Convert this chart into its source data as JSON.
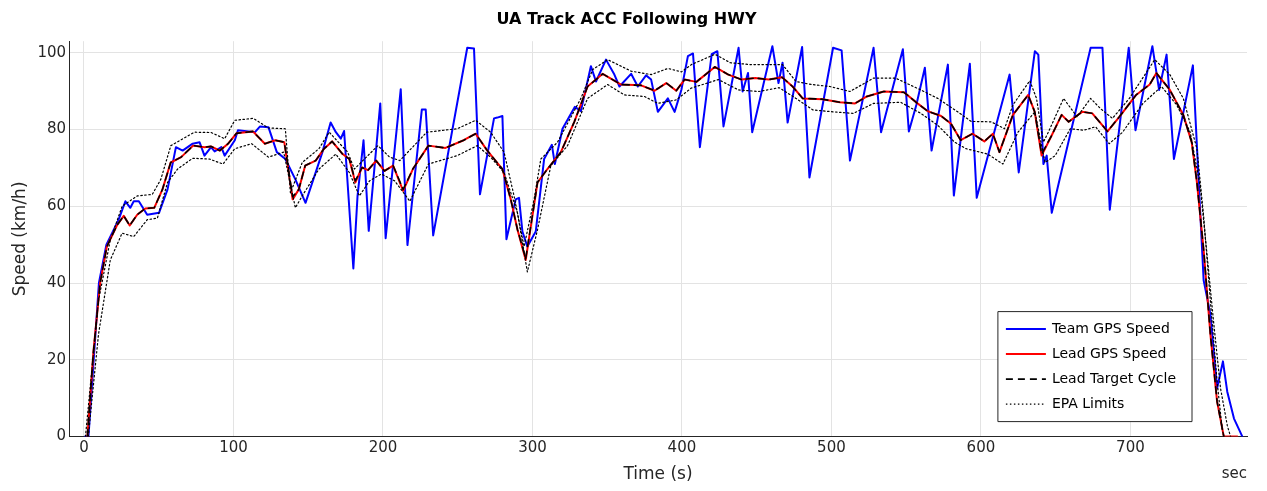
{
  "chart_data": {
    "type": "line",
    "title": "UA Track ACC Following HWY",
    "xlabel": "Time (s)",
    "ylabel": "Speed (km/h)",
    "annotations": [
      "sec"
    ],
    "xlim": [
      -10,
      778
    ],
    "xticks": [
      0,
      100,
      200,
      300,
      400,
      500,
      600,
      700
    ],
    "ylim": [
      0,
      103
    ],
    "yticks": [
      0,
      20,
      40,
      60,
      80,
      100
    ],
    "grid": true,
    "legend": "bottom right",
    "marker": "none",
    "series": [
      {
        "name": "Team GPS Speed",
        "color": "#0000ff",
        "line_style": "solid",
        "x": [
          0.7,
          3,
          10,
          15,
          23.2,
          27.7,
          31,
          33.3,
          36.7,
          42.3,
          50.2,
          55.9,
          61.5,
          66,
          72.7,
          77.3,
          80.6,
          85,
          87.4,
          91.9,
          94.1,
          100.9,
          103,
          114.4,
          117.8,
          123.4,
          129,
          134.7,
          141.4,
          148.2,
          159.5,
          165,
          168.5,
          171.8,
          174,
          180.2,
          183,
          187,
          190.5,
          198.2,
          201.8,
          211.9,
          216.4,
          226,
          228.6,
          233.6,
          256.4,
          260.9,
          264.9,
          274.3,
          276.5,
          279.9,
          282.6,
          288.8,
          291,
          293.3,
          296.6,
          302.2,
          307.8,
          313,
          315,
          320.1,
          328.4,
          332.4,
          339.1,
          342.5,
          349.2,
          354.8,
          358.2,
          366,
          370.5,
          376,
          379.4,
          383.9,
          390.6,
          395.1,
          399.6,
          404,
          407.4,
          412,
          419.9,
          423.7,
          427.8,
          437.9,
          440.6,
          444.2,
          447,
          460.5,
          464.6,
          467.3,
          470.7,
          480.4,
          485.3,
          501.1,
          506.8,
          512.4,
          528.2,
          533.2,
          547.8,
          551.8,
          556.8,
          562.5,
          567,
          571.1,
          577.9,
          581.9,
          592.6,
          597.2,
          619.2,
          625.3,
          636.1,
          638.4,
          641.8,
          644,
          647.4,
          673.4,
          681.3,
          686.2,
          698.9,
          703.4,
          714.7,
          719.2,
          724.2,
          729.1,
          741.8,
          749,
          753.5,
          758,
          761.9,
          764.8,
          769.3,
          774.9
        ],
        "values": [
          0,
          0,
          40,
          50,
          56.5,
          61.3,
          59.6,
          61.3,
          61.3,
          57.8,
          58.3,
          64.4,
          75.4,
          74.5,
          76.3,
          76.7,
          73.2,
          75.4,
          74.3,
          75.4,
          73.2,
          77.2,
          79.8,
          79.3,
          80.8,
          80.6,
          74.1,
          72.3,
          67,
          60.9,
          74.1,
          81.8,
          79.3,
          77.6,
          79.6,
          43.8,
          62.7,
          77.2,
          53.6,
          86.8,
          51.7,
          90.5,
          49.9,
          85.2,
          85.2,
          52.4,
          101.3,
          101.1,
          63.1,
          82.9,
          83.1,
          83.5,
          51.4,
          61.8,
          62.2,
          53.4,
          49.5,
          53.4,
          72.3,
          76,
          71,
          80.2,
          85.9,
          84.8,
          96.5,
          92.5,
          98.2,
          94.3,
          91.2,
          94.5,
          91.2,
          94.1,
          93,
          84.6,
          88.1,
          84.6,
          90.3,
          99.1,
          99.8,
          75.4,
          99.6,
          100.4,
          80.8,
          101.3,
          89.9,
          94.7,
          79.3,
          101.7,
          92.1,
          97.4,
          81.8,
          101.5,
          67.5,
          101.3,
          100.6,
          71.9,
          101.3,
          79.3,
          100.9,
          79.5,
          86.4,
          96.1,
          74.5,
          82.9,
          96.9,
          62.8,
          97.1,
          62.2,
          94.3,
          68.8,
          100.4,
          99.5,
          71,
          73.2,
          58.3,
          101.3,
          101.3,
          59.1,
          101.3,
          79.8,
          101.7,
          90.3,
          99.5,
          72.3,
          96.7,
          40.7,
          31.9,
          12.6,
          19.6,
          11.7,
          4.7,
          0
        ]
      },
      {
        "name": "Lead GPS Speed",
        "color": "#ff0000",
        "line_style": "solid",
        "x": [
          2.3,
          6.3,
          10.8,
          15.3,
          22,
          26.6,
          30.6,
          35.6,
          41,
          47,
          52.5,
          58,
          65,
          73,
          80.6,
          85,
          90.8,
          96.4,
          102,
          113,
          121,
          128,
          134,
          139.6,
          143.7,
          148,
          155,
          160.6,
          166,
          173,
          177.5,
          181.5,
          186,
          190,
          195.5,
          201,
          206.8,
          213.5,
          220,
          230.4,
          241.8,
          254,
          262,
          269.8,
          279.9,
          285.5,
          290,
          295.5,
          303.4,
          310,
          319,
          328,
          336.9,
          347,
          359.3,
          372.7,
          381.7,
          389.5,
          396.2,
          401.8,
          409.7,
          422,
          431,
          440,
          449,
          458,
          467,
          474,
          480.8,
          494,
          505.6,
          515.8,
          523.7,
          535,
          548.5,
          557.6,
          564.3,
          573.4,
          580,
          586.5,
          594.4,
          602.3,
          608,
          612.4,
          621.4,
          631.6,
          636,
          640.6,
          647.4,
          654,
          658.7,
          667.7,
          674.5,
          684.7,
          692.6,
          703.8,
          712.9,
          717.4,
          726.4,
          735.4,
          741,
          744.5,
          749,
          753.5,
          758,
          762.5,
          771.5
        ],
        "values": [
          0,
          22,
          40,
          49.5,
          55,
          57.5,
          55,
          57.8,
          59.4,
          59.6,
          64.4,
          71.4,
          72.8,
          75.8,
          75.4,
          75.6,
          74.5,
          76.3,
          79,
          79.5,
          76.3,
          77.2,
          76.7,
          61.8,
          64.4,
          70.6,
          71.9,
          75,
          76.9,
          73.6,
          72.3,
          66.2,
          70.1,
          69.4,
          71.9,
          69.2,
          70.6,
          64,
          69.7,
          75.8,
          75.2,
          77.2,
          78.9,
          74.5,
          69.7,
          61.8,
          53.9,
          46,
          66.2,
          69.7,
          74.1,
          82,
          91.2,
          94.5,
          91.7,
          91.5,
          90.1,
          92.1,
          90.1,
          93,
          92.4,
          96.3,
          94.3,
          93,
          93.4,
          93,
          93.6,
          91.2,
          88.1,
          87.9,
          87.1,
          86.8,
          88.6,
          89.9,
          89.7,
          86.8,
          84.8,
          83.5,
          81.5,
          77.2,
          78.9,
          76.9,
          78.9,
          74.1,
          83.8,
          89,
          84.6,
          73.2,
          78.5,
          83.8,
          82,
          84.6,
          84.2,
          79.5,
          83.3,
          89,
          91.7,
          94.7,
          90.3,
          83.8,
          76.7,
          66.2,
          48.6,
          26.7,
          9.1,
          0,
          0
        ]
      },
      {
        "name": "Lead Target Cycle",
        "color": "#000000",
        "line_style": "dashed",
        "x": [
          2.3,
          6.3,
          10.8,
          15.3,
          22,
          26.6,
          30.6,
          35.6,
          41,
          47,
          52.5,
          58,
          65,
          73,
          80.6,
          85,
          90.8,
          96.4,
          102,
          113,
          121,
          128,
          134,
          139.6,
          143.7,
          148,
          155,
          160.6,
          166,
          173,
          177.5,
          181.5,
          186,
          190,
          195.5,
          201,
          206.8,
          213.5,
          220,
          230.4,
          241.8,
          254,
          262,
          269.8,
          279.9,
          285.5,
          290,
          295.5,
          303.4,
          310,
          319,
          328,
          336.9,
          347,
          359.3,
          372.7,
          381.7,
          389.5,
          396.2,
          401.8,
          409.7,
          422,
          431,
          440,
          449,
          458,
          467,
          474,
          480.8,
          494,
          505.6,
          515.8,
          523.7,
          535,
          548.5,
          557.6,
          564.3,
          573.4,
          580,
          586.5,
          594.4,
          602.3,
          608,
          612.4,
          621.4,
          631.6,
          636,
          640.6,
          647.4,
          654,
          658.7,
          667.7,
          674.5,
          684.7,
          692.6,
          703.8,
          712.9,
          717.4,
          726.4,
          735.4,
          741,
          744.5,
          749,
          753.5,
          758,
          762.5
        ],
        "values": [
          0,
          22,
          40,
          49.5,
          55,
          57.5,
          55,
          57.8,
          59.4,
          59.6,
          64.4,
          71.4,
          72.8,
          75.8,
          75.4,
          75.6,
          74.5,
          76.3,
          79,
          79.5,
          76.3,
          77.2,
          76.7,
          62.5,
          64.4,
          70.6,
          71.9,
          75,
          76.9,
          73.6,
          72.3,
          66.6,
          70.1,
          69.4,
          71.9,
          69.2,
          70.6,
          64.4,
          69.7,
          75.8,
          75.2,
          77.2,
          78.9,
          74.5,
          69.7,
          61.8,
          53.9,
          46.4,
          66.2,
          69.7,
          74.1,
          82,
          91.2,
          94.5,
          91.7,
          91.5,
          90.1,
          92.1,
          90.1,
          93,
          92.4,
          96.3,
          94.3,
          93,
          93.4,
          93,
          93.6,
          91.2,
          88.1,
          87.9,
          87.1,
          86.8,
          88.6,
          89.9,
          89.7,
          86.8,
          84.8,
          83.5,
          81.5,
          77.2,
          78.9,
          76.9,
          78.9,
          74.1,
          83.8,
          89,
          84.6,
          73.6,
          78.5,
          83.8,
          82,
          84.6,
          84.2,
          79.5,
          83.3,
          89,
          91.7,
          94.7,
          90.3,
          83.8,
          76.7,
          66.2,
          48.6,
          26.7,
          9.1,
          0
        ]
      },
      {
        "name": "EPA Limits",
        "color": "#000000",
        "line_style": "dotted",
        "x": [
          1,
          9.7,
          17.6,
          25.5,
          35.6,
          45.7,
          51.4,
          58.1,
          73.9,
          85.1,
          94.1,
          100.9,
          113.3,
          123.4,
          134.7,
          138.1,
          146,
          157.2,
          164,
          176.4,
          180.9,
          196.6,
          204.5,
          211.3,
          229.3,
          249.7,
          262,
          272,
          281,
          287.7,
          294.4,
          301.1,
          305.6,
          316.8,
          332.4,
          340.3,
          350.3,
          366,
          379.4,
          390.6,
          399.6,
          406.3,
          422.1,
          432.3,
          445.8,
          467.3,
          476.3,
          485.3,
          498.9,
          512.4,
          528.2,
          542.8,
          559.8,
          571.1,
          584.5,
          593.5,
          606.8,
          615.8,
          621.4,
          632.7,
          637.2,
          641.8,
          645.1,
          655.3,
          664.3,
          673.4,
          680.1,
          688,
          699.3,
          716.3,
          726.4,
          735.4,
          744.5,
          749,
          753.5,
          758,
          761.4,
          762.5
        ],
        "values": [
          0,
          35.4,
          51.2,
          60,
          62.7,
          63.1,
          67,
          75.8,
          79.3,
          79.2,
          77.6,
          82.4,
          82.9,
          80.4,
          80.2,
          63.5,
          71.4,
          75,
          79.3,
          74.1,
          69.7,
          75.8,
          72.8,
          71.9,
          79.3,
          80.2,
          82.4,
          79.3,
          74.1,
          62.7,
          49.5,
          61.8,
          72.3,
          76.7,
          88.1,
          95.6,
          98.2,
          95.2,
          94.3,
          95.9,
          95,
          96.9,
          99.6,
          97.4,
          96.9,
          96.9,
          92.5,
          91.8,
          91.2,
          89.9,
          93.4,
          93.4,
          90.3,
          88.1,
          84.6,
          82.1,
          82,
          80.2,
          86.4,
          92.7,
          88.1,
          76.7,
          79.3,
          88.1,
          83.3,
          88.1,
          85.4,
          82.9,
          88.1,
          98.2,
          94.3,
          88.1,
          75,
          57.4,
          35.4,
          14.3,
          2,
          0
        ]
      },
      {
        "color": "#000000",
        "line_style": "dotted",
        "x": [
          2.9,
          5.2,
          9.7,
          17.6,
          25.5,
          33.3,
          42.3,
          49.1,
          55.9,
          62.6,
          72.7,
          84,
          93,
          100.9,
          112.2,
          123.4,
          133.6,
          141.4,
          146,
          157.2,
          168.5,
          177.5,
          184.2,
          191,
          198.9,
          207.9,
          218,
          230.4,
          249.7,
          263.1,
          272,
          281,
          290,
          296.6,
          303.4,
          312.3,
          323.5,
          336.9,
          350.3,
          361.5,
          374.9,
          383.9,
          396.2,
          406.3,
          424.4,
          437.9,
          451.5,
          465,
          476.3,
          487.6,
          501.1,
          514.7,
          528.2,
          546.3,
          559.8,
          571.1,
          582.4,
          590,
          604.5,
          614.7,
          624.8,
          636.1,
          642.9,
          649.7,
          659.8,
          668.8,
          676.7,
          685.8,
          694.8,
          708.4,
          720.8,
          731,
          740,
          746.7,
          751.2,
          755.8,
          760.3,
          764.8,
          767
        ],
        "values": [
          0,
          9.1,
          26.6,
          46,
          53,
          52.1,
          56.5,
          56.9,
          66.2,
          69.7,
          72.5,
          72.3,
          71,
          75,
          76.3,
          72.8,
          74.1,
          59.6,
          62.7,
          69.7,
          73.6,
          68.8,
          62.7,
          66.6,
          68.4,
          66.6,
          61.3,
          71,
          73.2,
          75.8,
          72.8,
          68.8,
          58.3,
          42.9,
          53.9,
          70.6,
          75.8,
          88.1,
          91.7,
          89,
          88.6,
          86.8,
          87.7,
          90.8,
          93,
          90.3,
          89.9,
          90.9,
          88.1,
          85.1,
          84.6,
          84.2,
          86.8,
          87.1,
          84.2,
          81.1,
          76.7,
          75,
          73.6,
          71,
          79.3,
          84.6,
          71.4,
          73.2,
          80.2,
          79.8,
          80.7,
          76.3,
          79.3,
          86.8,
          91.2,
          86.4,
          79.3,
          65.2,
          47.7,
          29.3,
          12.6,
          2.9,
          0
        ]
      }
    ]
  }
}
